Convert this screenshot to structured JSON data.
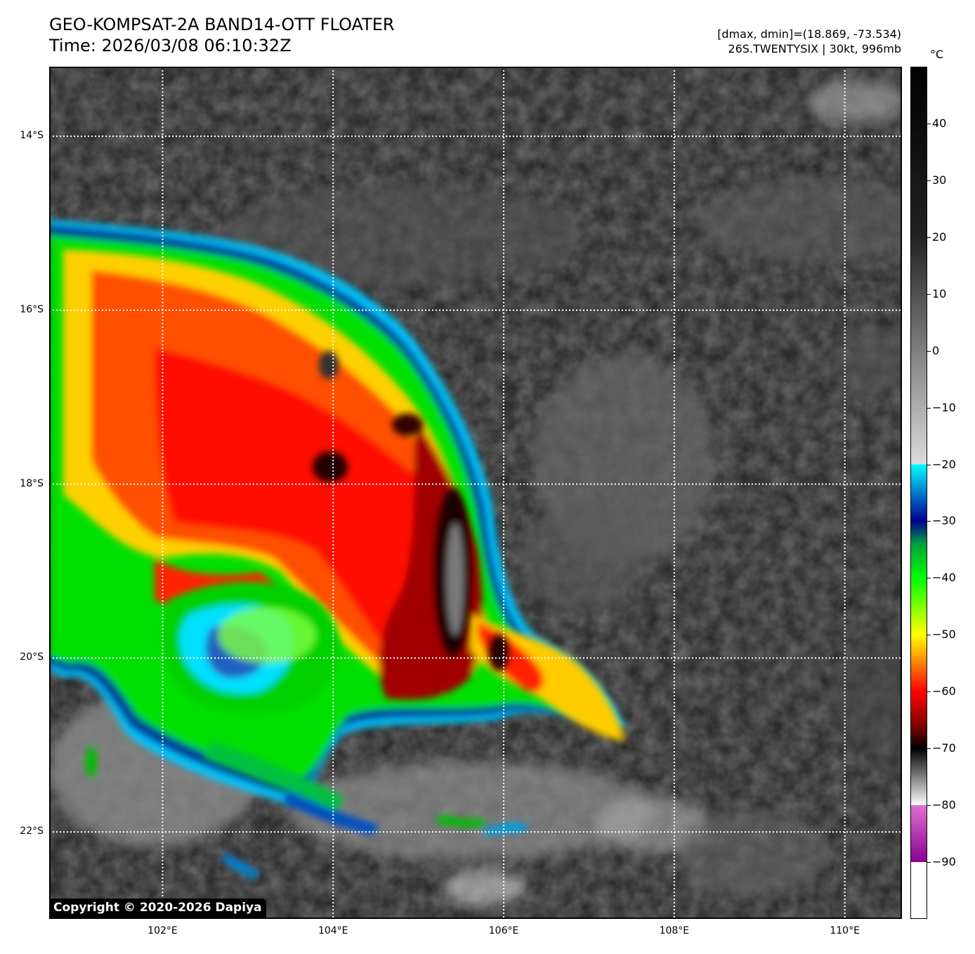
{
  "header": {
    "title_line1": "GEO-KOMPSAT-2A BAND14-OTT FLOATER",
    "title_line2": "Time: 2026/03/08 06:10:32Z",
    "meta_line1": "[dmax, dmin]=(18.869, -73.534)",
    "meta_line2": "26S.TWENTYSIX | 30kt, 996mb"
  },
  "map": {
    "lat_labels": [
      "14°S",
      "16°S",
      "18°S",
      "20°S",
      "22°S"
    ],
    "lon_labels": [
      "102°E",
      "104°E",
      "106°E",
      "108°E",
      "110°E"
    ],
    "lat_range": [
      -23.0,
      -13.2
    ],
    "lon_range": [
      100.67,
      110.67
    ],
    "gridlines": "dotted white"
  },
  "copyright": "Copyright © 2020-2026 Dapiya",
  "colorbar": {
    "unit": "°C",
    "range": [
      -100,
      50
    ],
    "tick_labels": [
      "40",
      "30",
      "20",
      "10",
      "0",
      "−10",
      "−20",
      "−30",
      "−40",
      "−50",
      "−60",
      "−70",
      "−80",
      "−90"
    ],
    "tick_values": [
      40,
      30,
      20,
      10,
      0,
      -10,
      -20,
      -30,
      -40,
      -50,
      -60,
      -70,
      -80,
      -90
    ],
    "stops": [
      {
        "t": 50,
        "color": "#000000"
      },
      {
        "t": 20,
        "color": "#222222"
      },
      {
        "t": -20,
        "color": "#dcdcdc"
      },
      {
        "t": -20,
        "color": "#00ffff"
      },
      {
        "t": -26,
        "color": "#0060c0"
      },
      {
        "t": -30,
        "color": "#000090"
      },
      {
        "t": -34,
        "color": "#00a040"
      },
      {
        "t": -40,
        "color": "#00ff00"
      },
      {
        "t": -50,
        "color": "#ffff00"
      },
      {
        "t": -55,
        "color": "#ff8000"
      },
      {
        "t": -60,
        "color": "#ff0000"
      },
      {
        "t": -66,
        "color": "#800000"
      },
      {
        "t": -70,
        "color": "#000000"
      },
      {
        "t": -80,
        "color": "#ffffff"
      },
      {
        "t": -80,
        "color": "#e070d0"
      },
      {
        "t": -90,
        "color": "#8a0090"
      },
      {
        "t": -90,
        "color": "#ffffff"
      },
      {
        "t": -100,
        "color": "#ffffff"
      }
    ]
  }
}
